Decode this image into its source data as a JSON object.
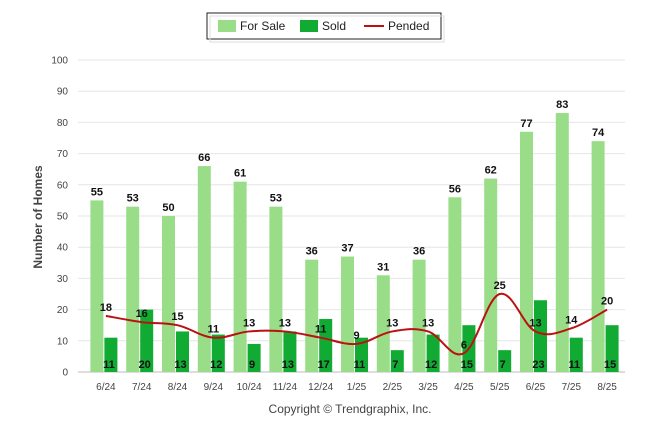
{
  "chart_data": {
    "type": "bar",
    "categories": [
      "6/24",
      "7/24",
      "8/24",
      "9/24",
      "10/24",
      "11/24",
      "12/24",
      "1/25",
      "2/25",
      "3/25",
      "4/25",
      "5/25",
      "6/25",
      "7/25",
      "8/25"
    ],
    "series": [
      {
        "name": "For Sale",
        "type": "bar",
        "color": "#99dd88",
        "values": [
          55,
          53,
          50,
          66,
          61,
          53,
          36,
          37,
          31,
          36,
          56,
          62,
          77,
          83,
          74
        ]
      },
      {
        "name": "Sold",
        "type": "bar",
        "color": "#11aa33",
        "values": [
          11,
          20,
          13,
          12,
          9,
          13,
          17,
          11,
          7,
          12,
          15,
          7,
          23,
          11,
          15
        ]
      },
      {
        "name": "Pended",
        "type": "line",
        "color": "#bb1111",
        "values": [
          18,
          16,
          15,
          11,
          13,
          13,
          11,
          9,
          13,
          13,
          6,
          25,
          13,
          14,
          20
        ]
      }
    ],
    "ylabel": "Number of Homes",
    "xlabel": "",
    "ylim": [
      0,
      100
    ],
    "yticks": [
      0,
      10,
      20,
      30,
      40,
      50,
      60,
      70,
      80,
      90,
      100
    ],
    "grid": true,
    "legend_position": "top-center"
  },
  "legend": {
    "items": [
      {
        "label": "For Sale",
        "color": "#99dd88",
        "kind": "bar"
      },
      {
        "label": "Sold",
        "color": "#11aa33",
        "kind": "bar"
      },
      {
        "label": "Pended",
        "color": "#bb1111",
        "kind": "line"
      }
    ]
  },
  "footer": {
    "credit": "Copyright © Trendgraphix, Inc."
  }
}
